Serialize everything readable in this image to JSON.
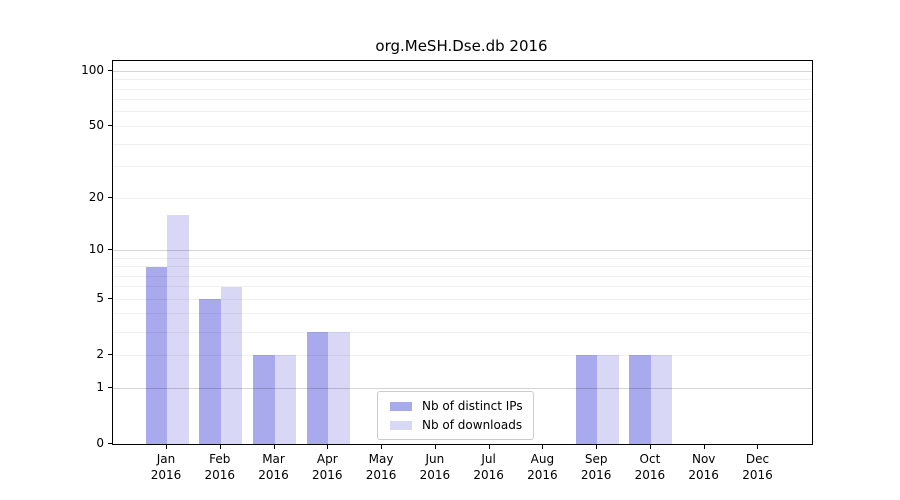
{
  "chart_data": {
    "type": "bar",
    "title": "org.MeSH.Dse.db 2016",
    "categories": [
      "Jan",
      "Feb",
      "Mar",
      "Apr",
      "May",
      "Jun",
      "Jul",
      "Aug",
      "Sep",
      "Oct",
      "Nov",
      "Dec"
    ],
    "year_label": "2016",
    "series": [
      {
        "name": "Nb of distinct IPs",
        "color": "#a9a9ee",
        "values": [
          8,
          5,
          2,
          3,
          0,
          0,
          0,
          0,
          2,
          2,
          0,
          0
        ]
      },
      {
        "name": "Nb of downloads",
        "color": "#d8d8f6",
        "values": [
          16,
          6,
          2,
          3,
          0,
          0,
          0,
          0,
          2,
          2,
          0,
          0
        ]
      }
    ],
    "yscale": "log1p",
    "ylim": [
      0,
      114
    ],
    "yticks": [
      100,
      50,
      20,
      10,
      5,
      2,
      1,
      0
    ],
    "grid_minor_values": [
      2,
      3,
      4,
      5,
      6,
      7,
      8,
      9,
      20,
      30,
      40,
      50,
      60,
      70,
      80,
      90
    ],
    "grid_major_values": [
      1,
      10,
      100
    ],
    "legend_position": "inside-bottom-center"
  }
}
